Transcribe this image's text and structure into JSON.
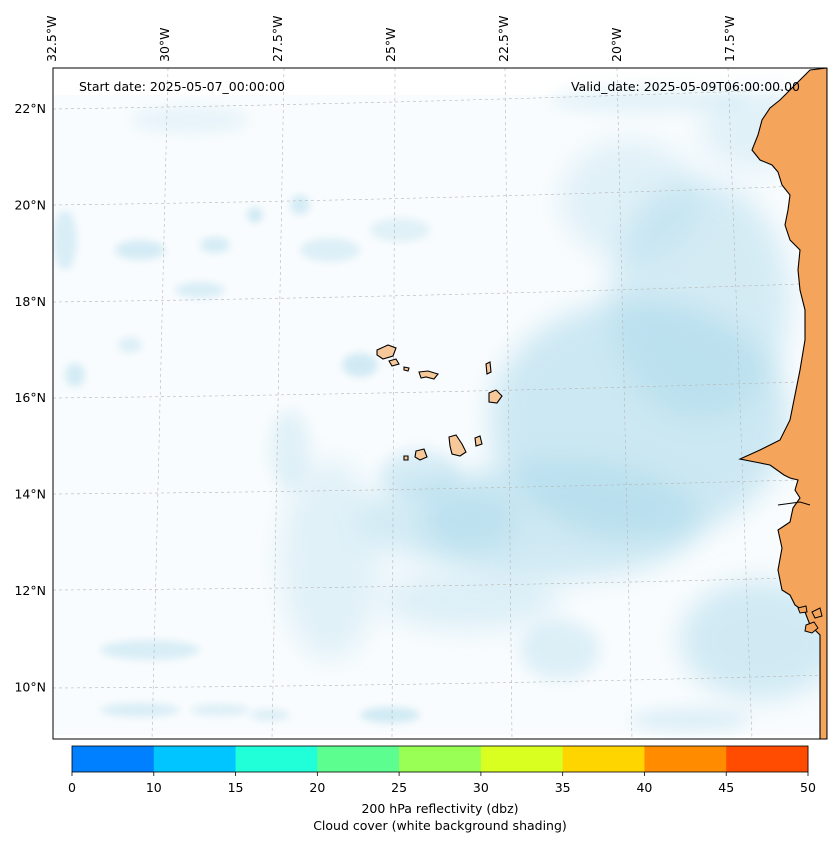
{
  "map": {
    "start_label": "Start date: 2025-05-07_00:00:00",
    "valid_label": "Valid_date: 2025-05-09T06:00:00.00",
    "lon_labels": [
      {
        "text": "32.5°W",
        "lon": -32.5
      },
      {
        "text": "30°W",
        "lon": -30
      },
      {
        "text": "27.5°W",
        "lon": -27.5
      },
      {
        "text": "25°W",
        "lon": -25
      },
      {
        "text": "22.5°W",
        "lon": -22.5
      },
      {
        "text": "20°W",
        "lon": -20
      },
      {
        "text": "17.5°W",
        "lon": -17.5
      }
    ],
    "lat_labels": [
      {
        "text": "22°N",
        "lat": 22
      },
      {
        "text": "20°N",
        "lat": 20
      },
      {
        "text": "18°N",
        "lat": 18
      },
      {
        "text": "16°N",
        "lat": 16
      },
      {
        "text": "14°N",
        "lat": 14
      },
      {
        "text": "12°N",
        "lat": 12
      },
      {
        "text": "10°N",
        "lat": 10
      }
    ],
    "land_color": "#f5a55b",
    "island_color": "#f7c99a",
    "cloud_color": "#a8d8ea"
  },
  "colorbar": {
    "ticks": [
      "0",
      "10",
      "15",
      "20",
      "25",
      "30",
      "35",
      "40",
      "45",
      "50"
    ],
    "colors": [
      "#007fff",
      "#00c5ff",
      "#20ffd8",
      "#5cff8f",
      "#99ff55",
      "#d8ff1f",
      "#ffd500",
      "#ff8c00",
      "#ff4c00"
    ],
    "label_line1": "200 hPa reflectivity (dbz)",
    "label_line2": "Cloud cover (white background shading)"
  }
}
